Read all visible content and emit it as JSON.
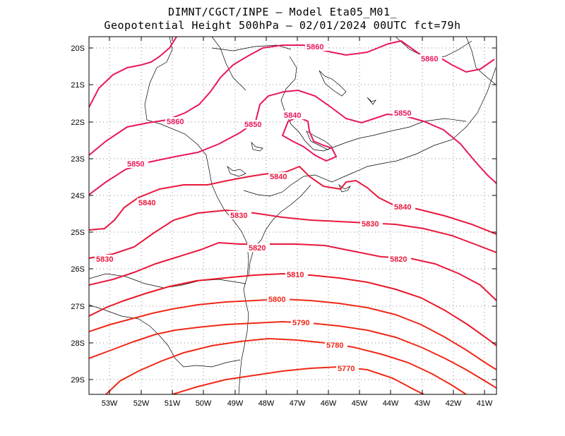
{
  "header": {
    "line1": "DIMNT/CGCT/INPE –  Model Eta05_M01_",
    "line2": "Geopotential Height 500hPa –  02/01/2024 00UTC fct=79h"
  },
  "map": {
    "lat_labels": [
      "20S",
      "21S",
      "22S",
      "23S",
      "24S",
      "25S",
      "26S",
      "27S",
      "28S",
      "29S"
    ],
    "lon_labels": [
      "53W",
      "52W",
      "51W",
      "50W",
      "49W",
      "48W",
      "47W",
      "46W",
      "45W",
      "44W",
      "43W",
      "42W",
      "41W"
    ],
    "contour_labels": [
      "5860",
      "5860",
      "5860",
      "5850",
      "5850",
      "5850",
      "5840",
      "5840",
      "5840",
      "5840",
      "5830",
      "5830",
      "5830",
      "5820",
      "5820",
      "5810",
      "5800",
      "5790",
      "5780",
      "5770"
    ],
    "colors": {
      "high": "#e8185a",
      "mid": "#e8183c",
      "low": "#f02818",
      "coast": "#000000",
      "grid": "#888888"
    }
  }
}
